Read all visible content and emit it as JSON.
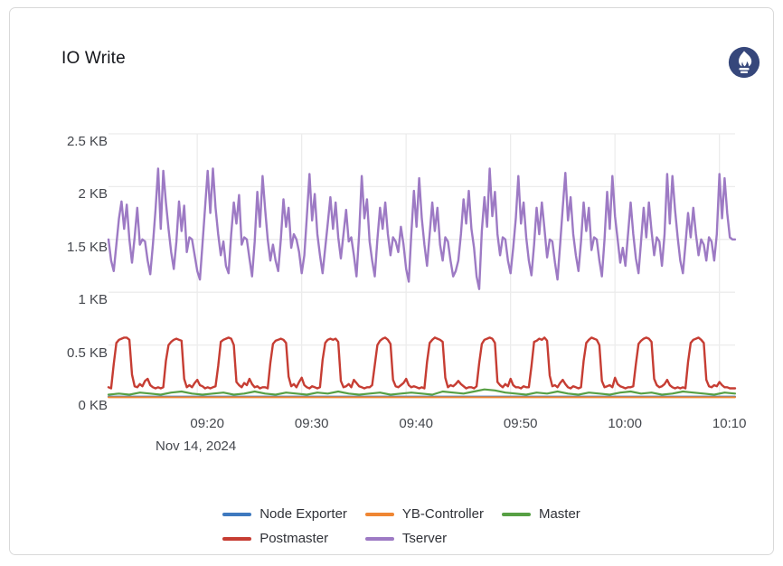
{
  "panel": {
    "title": "IO Write",
    "logo": {
      "name": "prometheus-logo",
      "circle_color": "#36477b",
      "flame_color": "#ffffff"
    }
  },
  "colors": {
    "card_border": "#d9d9d9",
    "grid_line": "#ececec",
    "tick_text": "#44474d",
    "legend_text": "#303238",
    "title_text": "#13151a"
  },
  "legend": {
    "items": [
      {
        "label": "Node Exporter",
        "color": "#3e79bf"
      },
      {
        "label": "YB-Controller",
        "color": "#ef8633"
      },
      {
        "label": "Master",
        "color": "#57a044"
      },
      {
        "label": "Postmaster",
        "color": "#c63d33"
      },
      {
        "label": "Tserver",
        "color": "#9d7ac4"
      }
    ]
  },
  "chart_data": {
    "type": "line",
    "title": "IO Write",
    "unit": "KB",
    "grid": true,
    "legend_position": "bottom",
    "y_axis": {
      "ticks": [
        "2.5 KB",
        "2 KB",
        "1.5 KB",
        "1 KB",
        "0.5 KB",
        "0 KB"
      ],
      "min": 0,
      "max": 2.5
    },
    "x_axis": {
      "ticks": [
        "09:20",
        "09:30",
        "09:40",
        "09:50",
        "10:00",
        "10:10"
      ],
      "tick_offsets_min": [
        8.5,
        18.5,
        28.5,
        38.5,
        48.5,
        58.5
      ],
      "date_label": "Nov 14, 2024",
      "window_minutes": 60,
      "window_start": "09:11:30",
      "window_end": "10:11:30"
    },
    "series": [
      {
        "name": "Node Exporter",
        "color": "#3e79bf",
        "width": 2,
        "start_min": 0,
        "step_min": 5,
        "values": [
          0.012,
          0.012,
          0.012,
          0.012,
          0.012,
          0.012,
          0.012,
          0.012,
          0.012,
          0.012,
          0.012,
          0.012,
          0.012
        ]
      },
      {
        "name": "YB-Controller",
        "color": "#ef8633",
        "width": 2,
        "start_min": 0,
        "step_min": 5,
        "values": [
          0.005,
          0.005,
          0.005,
          0.005,
          0.005,
          0.005,
          0.005,
          0.005,
          0.005,
          0.005,
          0.005,
          0.005,
          0.005
        ]
      },
      {
        "name": "Master",
        "color": "#57a044",
        "width": 2.2,
        "start_min": 0,
        "step_min": 1,
        "values": [
          0.03,
          0.04,
          0.03,
          0.05,
          0.04,
          0.03,
          0.05,
          0.06,
          0.04,
          0.03,
          0.04,
          0.05,
          0.03,
          0.04,
          0.06,
          0.04,
          0.03,
          0.05,
          0.04,
          0.03,
          0.05,
          0.04,
          0.06,
          0.04,
          0.03,
          0.04,
          0.05,
          0.03,
          0.04,
          0.05,
          0.04,
          0.03,
          0.06,
          0.05,
          0.04,
          0.06,
          0.08,
          0.07,
          0.05,
          0.04,
          0.03,
          0.05,
          0.04,
          0.06,
          0.04,
          0.03,
          0.05,
          0.04,
          0.03,
          0.05,
          0.06,
          0.04,
          0.05,
          0.03,
          0.04,
          0.06,
          0.05,
          0.04,
          0.03,
          0.05,
          0.04
        ]
      },
      {
        "name": "Postmaster",
        "color": "#c63d33",
        "width": 2.4,
        "start_min": 0,
        "step_min": 0.25,
        "values": [
          0.1,
          0.09,
          0.32,
          0.52,
          0.55,
          0.56,
          0.57,
          0.57,
          0.55,
          0.22,
          0.11,
          0.1,
          0.13,
          0.11,
          0.16,
          0.18,
          0.12,
          0.1,
          0.09,
          0.1,
          0.09,
          0.1,
          0.35,
          0.5,
          0.53,
          0.55,
          0.56,
          0.55,
          0.54,
          0.18,
          0.1,
          0.12,
          0.1,
          0.14,
          0.17,
          0.12,
          0.11,
          0.09,
          0.1,
          0.09,
          0.1,
          0.11,
          0.3,
          0.53,
          0.55,
          0.56,
          0.57,
          0.56,
          0.5,
          0.15,
          0.12,
          0.1,
          0.14,
          0.12,
          0.18,
          0.13,
          0.1,
          0.11,
          0.09,
          0.1,
          0.1,
          0.09,
          0.33,
          0.51,
          0.54,
          0.55,
          0.56,
          0.55,
          0.52,
          0.2,
          0.11,
          0.13,
          0.1,
          0.15,
          0.19,
          0.12,
          0.1,
          0.09,
          0.11,
          0.1,
          0.09,
          0.1,
          0.36,
          0.52,
          0.55,
          0.56,
          0.55,
          0.56,
          0.53,
          0.16,
          0.1,
          0.11,
          0.13,
          0.1,
          0.17,
          0.14,
          0.11,
          0.1,
          0.09,
          0.1,
          0.1,
          0.12,
          0.31,
          0.5,
          0.54,
          0.56,
          0.57,
          0.55,
          0.51,
          0.17,
          0.11,
          0.1,
          0.12,
          0.14,
          0.18,
          0.12,
          0.1,
          0.11,
          0.1,
          0.09,
          0.1,
          0.09,
          0.34,
          0.52,
          0.55,
          0.57,
          0.56,
          0.55,
          0.53,
          0.19,
          0.1,
          0.12,
          0.11,
          0.13,
          0.16,
          0.13,
          0.11,
          0.09,
          0.1,
          0.1,
          0.09,
          0.11,
          0.33,
          0.51,
          0.55,
          0.56,
          0.57,
          0.56,
          0.52,
          0.15,
          0.12,
          0.1,
          0.13,
          0.11,
          0.18,
          0.12,
          0.1,
          0.1,
          0.09,
          0.11,
          0.1,
          0.1,
          0.3,
          0.53,
          0.54,
          0.56,
          0.55,
          0.57,
          0.54,
          0.21,
          0.11,
          0.12,
          0.1,
          0.14,
          0.17,
          0.13,
          0.1,
          0.09,
          0.11,
          0.1,
          0.09,
          0.1,
          0.35,
          0.52,
          0.55,
          0.57,
          0.56,
          0.55,
          0.5,
          0.16,
          0.1,
          0.11,
          0.12,
          0.1,
          0.19,
          0.13,
          0.11,
          0.1,
          0.09,
          0.1,
          0.1,
          0.11,
          0.32,
          0.51,
          0.54,
          0.56,
          0.57,
          0.56,
          0.53,
          0.18,
          0.12,
          0.1,
          0.11,
          0.13,
          0.17,
          0.12,
          0.1,
          0.09,
          0.1,
          0.09,
          0.1,
          0.09,
          0.34,
          0.52,
          0.55,
          0.56,
          0.57,
          0.55,
          0.52,
          0.17,
          0.11,
          0.1,
          0.12,
          0.11,
          0.15,
          0.12,
          0.1,
          0.1,
          0.09,
          0.09,
          0.09
        ]
      },
      {
        "name": "Tserver",
        "color": "#9d7ac4",
        "width": 2.4,
        "start_min": 0,
        "step_min": 0.25,
        "values": [
          1.5,
          1.3,
          1.2,
          1.45,
          1.7,
          1.86,
          1.6,
          1.83,
          1.5,
          1.28,
          1.52,
          1.8,
          1.45,
          1.5,
          1.48,
          1.3,
          1.17,
          1.45,
          1.78,
          2.17,
          1.6,
          2.15,
          1.85,
          1.6,
          1.38,
          1.22,
          1.48,
          1.86,
          1.58,
          1.82,
          1.38,
          1.52,
          1.5,
          1.35,
          1.2,
          1.12,
          1.45,
          1.8,
          2.15,
          1.75,
          2.17,
          1.8,
          1.55,
          1.35,
          1.48,
          1.25,
          1.18,
          1.55,
          1.85,
          1.65,
          1.92,
          1.45,
          1.52,
          1.5,
          1.32,
          1.15,
          1.48,
          1.95,
          1.62,
          2.1,
          1.78,
          1.5,
          1.3,
          1.45,
          1.3,
          1.2,
          1.5,
          1.88,
          1.62,
          1.8,
          1.42,
          1.55,
          1.5,
          1.38,
          1.18,
          1.35,
          1.72,
          2.12,
          1.68,
          1.93,
          1.55,
          1.35,
          1.18,
          1.42,
          1.65,
          1.9,
          1.6,
          1.85,
          1.52,
          1.32,
          1.55,
          1.78,
          1.48,
          1.52,
          1.35,
          1.15,
          1.55,
          2.1,
          1.7,
          1.88,
          1.48,
          1.3,
          1.15,
          1.5,
          1.8,
          1.6,
          1.85,
          1.55,
          1.35,
          1.52,
          1.48,
          1.38,
          1.62,
          1.45,
          1.22,
          1.1,
          1.55,
          1.96,
          1.62,
          2.08,
          1.7,
          1.45,
          1.25,
          1.55,
          1.85,
          1.58,
          1.8,
          1.45,
          1.3,
          1.52,
          1.48,
          1.3,
          1.15,
          1.2,
          1.3,
          1.55,
          1.88,
          1.65,
          1.96,
          1.6,
          1.42,
          1.15,
          1.03,
          1.58,
          1.9,
          1.62,
          2.17,
          1.72,
          1.95,
          1.55,
          1.35,
          1.52,
          1.5,
          1.3,
          1.18,
          1.42,
          1.7,
          2.1,
          1.65,
          1.85,
          1.52,
          1.3,
          1.16,
          1.45,
          1.8,
          1.55,
          1.85,
          1.6,
          1.33,
          1.5,
          1.48,
          1.28,
          1.12,
          1.45,
          1.8,
          2.13,
          1.68,
          1.9,
          1.55,
          1.35,
          1.2,
          1.48,
          1.85,
          1.58,
          1.8,
          1.4,
          1.52,
          1.5,
          1.3,
          1.15,
          1.5,
          1.95,
          1.6,
          2.1,
          1.72,
          1.5,
          1.28,
          1.42,
          1.25,
          1.55,
          1.85,
          1.55,
          1.32,
          1.18,
          1.48,
          1.8,
          1.52,
          1.85,
          1.58,
          1.35,
          1.52,
          1.48,
          1.25,
          1.55,
          2.12,
          1.65,
          2.1,
          1.78,
          1.52,
          1.3,
          1.18,
          1.45,
          1.75,
          1.52,
          1.8,
          1.55,
          1.35,
          1.5,
          1.45,
          1.3,
          1.52,
          1.48,
          1.3,
          1.55,
          2.12,
          1.7,
          2.08,
          1.75,
          1.52,
          1.5,
          1.5
        ]
      }
    ]
  }
}
